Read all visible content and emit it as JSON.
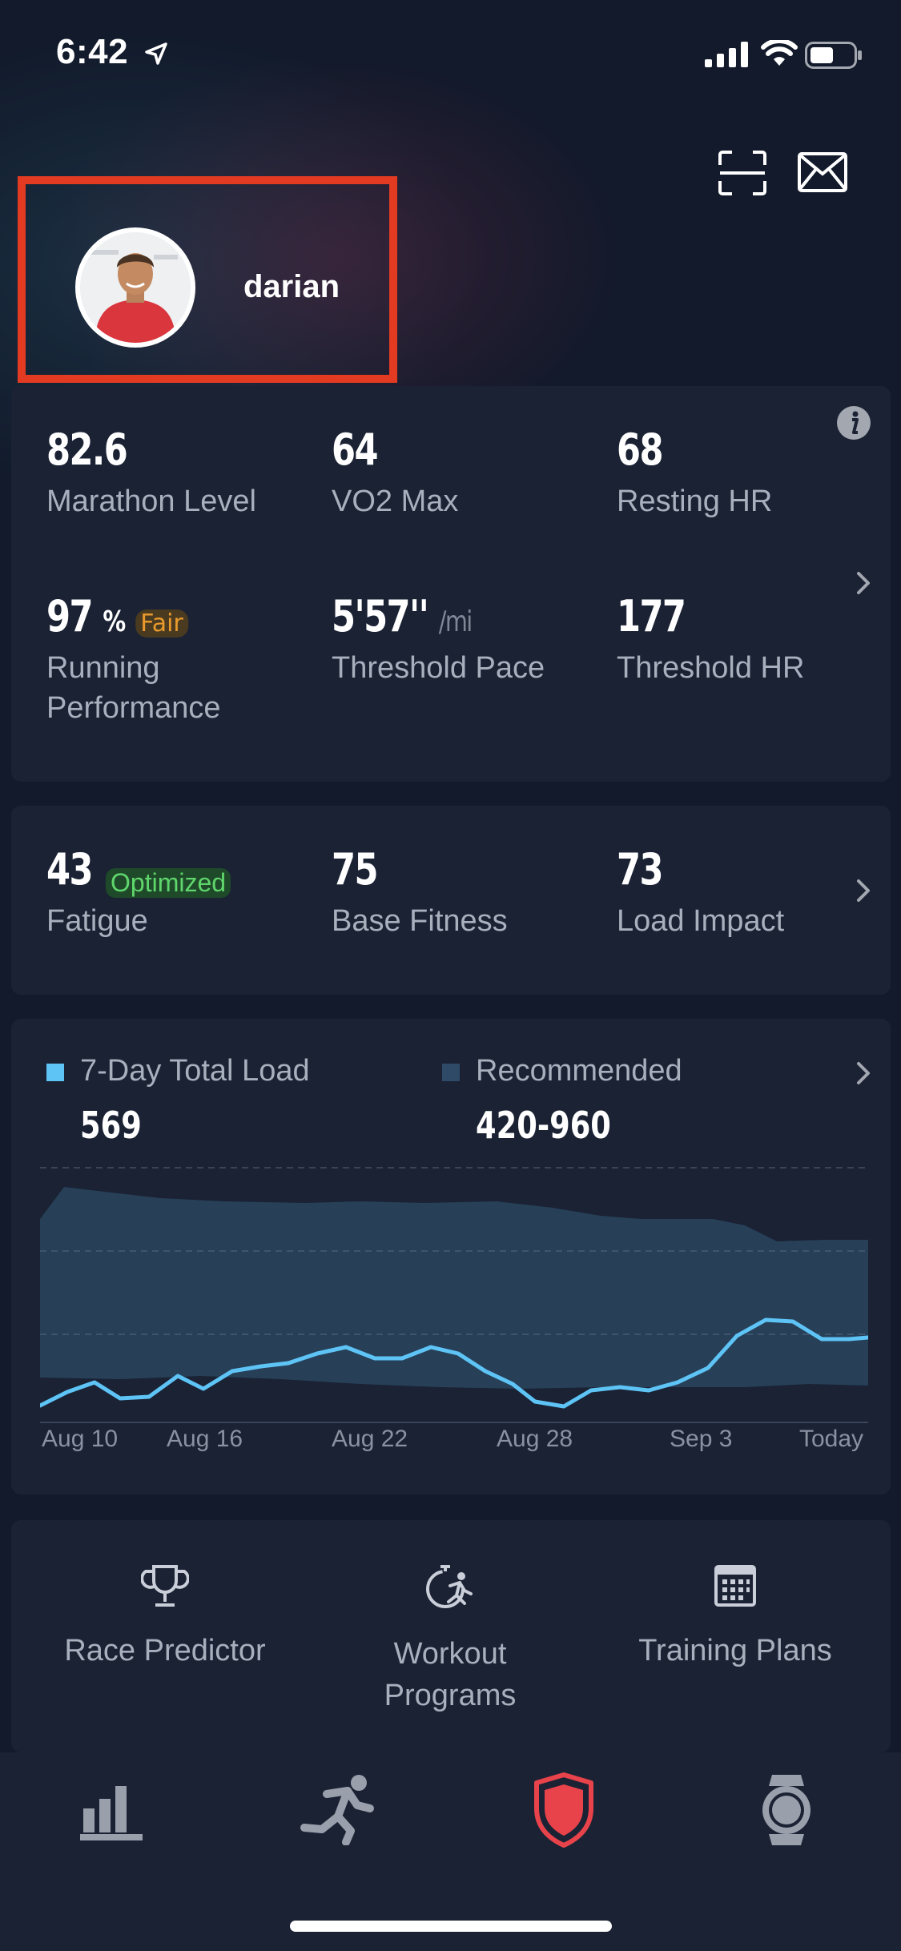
{
  "status_bar": {
    "time": "6:42"
  },
  "profile": {
    "username": "darian"
  },
  "metrics_card": {
    "marathon_level": {
      "value": "82.6",
      "label": "Marathon Level"
    },
    "vo2_max": {
      "value": "64",
      "label": "VO2 Max"
    },
    "resting_hr": {
      "value": "68",
      "label": "Resting HR"
    },
    "running_performance": {
      "value": "97",
      "unit": "%",
      "badge": "Fair",
      "label_line1": "Running",
      "label_line2": "Performance"
    },
    "threshold_pace": {
      "value": "5'57''",
      "unit": "/mi",
      "label": "Threshold Pace"
    },
    "threshold_hr": {
      "value": "177",
      "label": "Threshold HR"
    }
  },
  "fatigue_card": {
    "fatigue": {
      "value": "43",
      "badge": "Optimized",
      "label": "Fatigue"
    },
    "base_fitness": {
      "value": "75",
      "label": "Base Fitness"
    },
    "load_impact": {
      "value": "73",
      "label": "Load Impact"
    }
  },
  "load_card": {
    "total_label": "7-Day Total Load",
    "total_value": "569",
    "recommended_label": "Recommended",
    "recommended_value": "420-960",
    "x_ticks": [
      "Aug 10",
      "Aug 16",
      "Aug 22",
      "Aug 28",
      "Sep 3",
      "Today"
    ]
  },
  "features": [
    {
      "label_line1": "Race Predictor",
      "label_line2": ""
    },
    {
      "label_line1": "Workout",
      "label_line2": "Programs"
    },
    {
      "label_line1": "Training Plans",
      "label_line2": ""
    }
  ],
  "colors": {
    "background": "#121a2b",
    "card": "#1a2234",
    "accent_red": "#e8434b",
    "load_line": "#5ec4f6",
    "recommended_band": "#274058",
    "fair_badge": "#e99a2c",
    "optimized_badge": "#5fd66b"
  },
  "icons": [
    "location-arrow-icon",
    "signal-icon",
    "wifi-icon",
    "battery-icon",
    "scan-icon",
    "mail-icon",
    "info-icon",
    "trophy-icon",
    "stopwatch-runner-icon",
    "calendar-icon",
    "bar-chart-icon",
    "runner-icon",
    "shield-icon",
    "watch-icon"
  ]
}
